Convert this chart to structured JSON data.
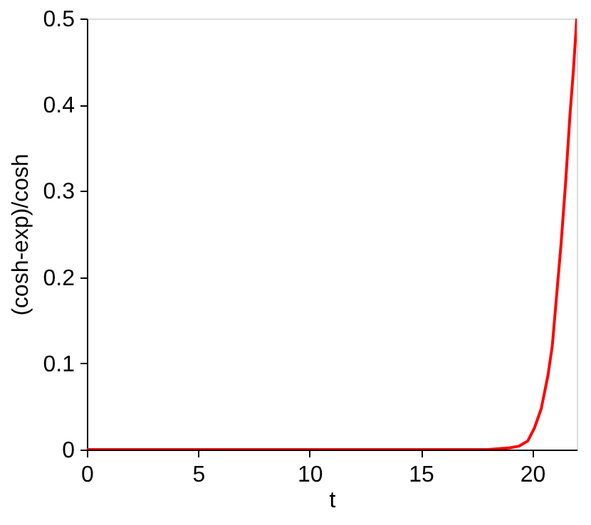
{
  "chart_data": {
    "type": "line",
    "xlabel": "t",
    "ylabel": "(cosh-exp)/cosh",
    "x": [
      0,
      5,
      10,
      15,
      17,
      18,
      18.5,
      19,
      19.4,
      19.8,
      20.1,
      20.4,
      20.7,
      20.9,
      21.1,
      21.3,
      21.5,
      21.7,
      21.85,
      22
    ],
    "series": [
      {
        "color": "#ff0000",
        "values": [
          0,
          0,
          0,
          0,
          0,
          0,
          0.001,
          0.002,
          0.004,
          0.01,
          0.025,
          0.047,
          0.085,
          0.12,
          0.18,
          0.24,
          0.31,
          0.39,
          0.44,
          0.5
        ]
      }
    ],
    "xlim": [
      0,
      22
    ],
    "xticks": [
      0,
      5,
      10,
      15,
      20
    ],
    "ylim": [
      0,
      0.5
    ],
    "yticks": [
      0,
      0.1,
      0.2,
      0.3,
      0.4,
      0.5
    ],
    "grid": false,
    "legend": false,
    "marker": "none",
    "line_style": "solid"
  }
}
